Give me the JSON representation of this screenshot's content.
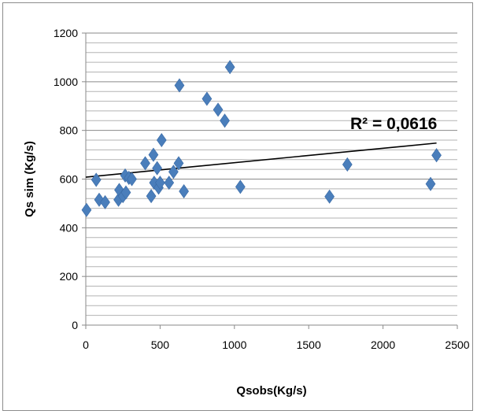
{
  "chart_data": {
    "type": "scatter",
    "xlabel": "Qsobs(Kg/s)",
    "ylabel": "Qs sim (Kg/s)",
    "xlim": [
      0,
      2500
    ],
    "ylim": [
      0,
      1200
    ],
    "x_ticks": [
      0,
      500,
      1000,
      1500,
      2000,
      2500
    ],
    "y_ticks": [
      0,
      200,
      400,
      600,
      800,
      1000,
      1200
    ],
    "y_minor_step": 40,
    "grid": "horizontal",
    "legend": "none",
    "marker": "diamond",
    "marker_color": "#4a7ebb",
    "annotation": "R² = 0,0616",
    "trendline": {
      "type": "linear",
      "points": [
        [
          0,
          608
        ],
        [
          2360,
          748
        ]
      ],
      "color": "#000000"
    },
    "points": [
      [
        5,
        473
      ],
      [
        70,
        597
      ],
      [
        90,
        515
      ],
      [
        130,
        505
      ],
      [
        220,
        515
      ],
      [
        225,
        555
      ],
      [
        250,
        530
      ],
      [
        265,
        615
      ],
      [
        270,
        545
      ],
      [
        290,
        605
      ],
      [
        310,
        600
      ],
      [
        400,
        665
      ],
      [
        440,
        530
      ],
      [
        455,
        700
      ],
      [
        460,
        585
      ],
      [
        480,
        645
      ],
      [
        490,
        565
      ],
      [
        500,
        585
      ],
      [
        510,
        760
      ],
      [
        560,
        585
      ],
      [
        590,
        630
      ],
      [
        625,
        665
      ],
      [
        630,
        985
      ],
      [
        660,
        550
      ],
      [
        815,
        930
      ],
      [
        890,
        885
      ],
      [
        935,
        840
      ],
      [
        970,
        1060
      ],
      [
        1040,
        568
      ],
      [
        1640,
        528
      ],
      [
        1760,
        660
      ],
      [
        2320,
        580
      ],
      [
        2360,
        698
      ]
    ]
  }
}
